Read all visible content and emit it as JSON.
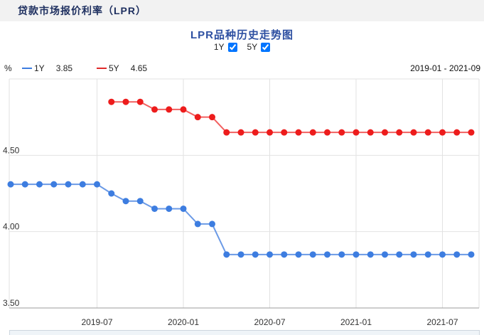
{
  "header": {
    "title": "贷款市场报价利率（LPR）",
    "bg": "#f2f2f2",
    "color": "#1f3060"
  },
  "chart": {
    "title": "LPR品种历史走势图",
    "title_color": "#2d4fa1",
    "controls": [
      {
        "label": "1Y",
        "checked": true
      },
      {
        "label": "5Y",
        "checked": true
      }
    ],
    "unit": "%",
    "legend": [
      {
        "name": "1Y",
        "value": "3.85",
        "color": "#3d7de0"
      },
      {
        "name": "5Y",
        "value": "4.65",
        "color": "#e02a2a"
      }
    ],
    "range": "2019-01 - 2021-09"
  },
  "chart_data": {
    "type": "line",
    "title": "LPR品种历史走势图",
    "xlabel": "",
    "ylabel": "%",
    "ylim": [
      3.5,
      5.0
    ],
    "grid": true,
    "legend_position": "top-left",
    "x": [
      "2019-01",
      "2019-02",
      "2019-03",
      "2019-04",
      "2019-05",
      "2019-06",
      "2019-07",
      "2019-08",
      "2019-09",
      "2019-10",
      "2019-11",
      "2019-12",
      "2020-01",
      "2020-02",
      "2020-03",
      "2020-04",
      "2020-05",
      "2020-06",
      "2020-07",
      "2020-08",
      "2020-09",
      "2020-10",
      "2020-11",
      "2020-12",
      "2021-01",
      "2021-02",
      "2021-03",
      "2021-04",
      "2021-05",
      "2021-06",
      "2021-07",
      "2021-08",
      "2021-09"
    ],
    "series": [
      {
        "name": "1Y",
        "dot_color": "#3d7de0",
        "line_color": "#6b9ae6",
        "values": [
          4.31,
          4.31,
          4.31,
          4.31,
          4.31,
          4.31,
          4.31,
          4.25,
          4.2,
          4.2,
          4.15,
          4.15,
          4.15,
          4.05,
          4.05,
          3.85,
          3.85,
          3.85,
          3.85,
          3.85,
          3.85,
          3.85,
          3.85,
          3.85,
          3.85,
          3.85,
          3.85,
          3.85,
          3.85,
          3.85,
          3.85,
          3.85,
          3.85
        ]
      },
      {
        "name": "5Y",
        "dot_color": "#ed1c1c",
        "line_color": "#f26060",
        "values": [
          null,
          null,
          null,
          null,
          null,
          null,
          null,
          4.85,
          4.85,
          4.85,
          4.8,
          4.8,
          4.8,
          4.75,
          4.75,
          4.65,
          4.65,
          4.65,
          4.65,
          4.65,
          4.65,
          4.65,
          4.65,
          4.65,
          4.65,
          4.65,
          4.65,
          4.65,
          4.65,
          4.65,
          4.65,
          4.65,
          4.65
        ]
      }
    ],
    "yticks": [
      {
        "value": 3.5,
        "label": "3.50"
      },
      {
        "value": 4.0,
        "label": "4.00"
      },
      {
        "value": 4.5,
        "label": "4.50"
      }
    ],
    "xticks": [
      {
        "index": 6,
        "label": "2019-07"
      },
      {
        "index": 12,
        "label": "2020-01"
      },
      {
        "index": 18,
        "label": "2020-07"
      },
      {
        "index": 24,
        "label": "2021-01"
      },
      {
        "index": 30,
        "label": "2021-07"
      }
    ]
  }
}
